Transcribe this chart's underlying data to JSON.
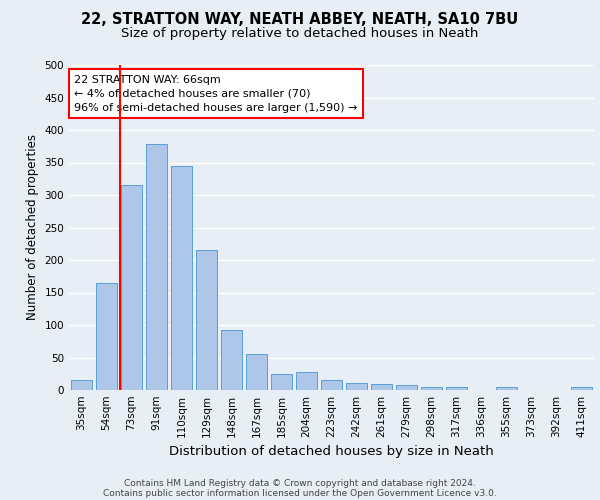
{
  "title1": "22, STRATTON WAY, NEATH ABBEY, NEATH, SA10 7BU",
  "title2": "Size of property relative to detached houses in Neath",
  "xlabel": "Distribution of detached houses by size in Neath",
  "ylabel": "Number of detached properties",
  "footnote1": "Contains HM Land Registry data © Crown copyright and database right 2024.",
  "footnote2": "Contains public sector information licensed under the Open Government Licence v3.0.",
  "categories": [
    "35sqm",
    "54sqm",
    "73sqm",
    "91sqm",
    "110sqm",
    "129sqm",
    "148sqm",
    "167sqm",
    "185sqm",
    "204sqm",
    "223sqm",
    "242sqm",
    "261sqm",
    "279sqm",
    "298sqm",
    "317sqm",
    "336sqm",
    "355sqm",
    "373sqm",
    "392sqm",
    "411sqm"
  ],
  "values": [
    15,
    165,
    315,
    378,
    345,
    215,
    93,
    55,
    25,
    28,
    15,
    11,
    10,
    8,
    5,
    4,
    0,
    4,
    0,
    0,
    4
  ],
  "bar_color": "#aec6e8",
  "bar_edge_color": "#5a9fd4",
  "annotation_text_line1": "22 STRATTON WAY: 66sqm",
  "annotation_text_line2": "← 4% of detached houses are smaller (70)",
  "annotation_text_line3": "96% of semi-detached houses are larger (1,590) →",
  "annotation_box_color": "white",
  "annotation_box_edge": "red",
  "vertical_line_color": "red",
  "bg_color": "#e8eef5",
  "plot_bg_color": "#e8eef5",
  "grid_color": "white",
  "ylim": [
    0,
    500
  ],
  "yticks": [
    0,
    50,
    100,
    150,
    200,
    250,
    300,
    350,
    400,
    450,
    500
  ],
  "title1_fontsize": 10.5,
  "title2_fontsize": 9.5,
  "xlabel_fontsize": 9.5,
  "ylabel_fontsize": 8.5,
  "tick_fontsize": 7.5,
  "annotation_fontsize": 8,
  "footnote_fontsize": 6.5
}
